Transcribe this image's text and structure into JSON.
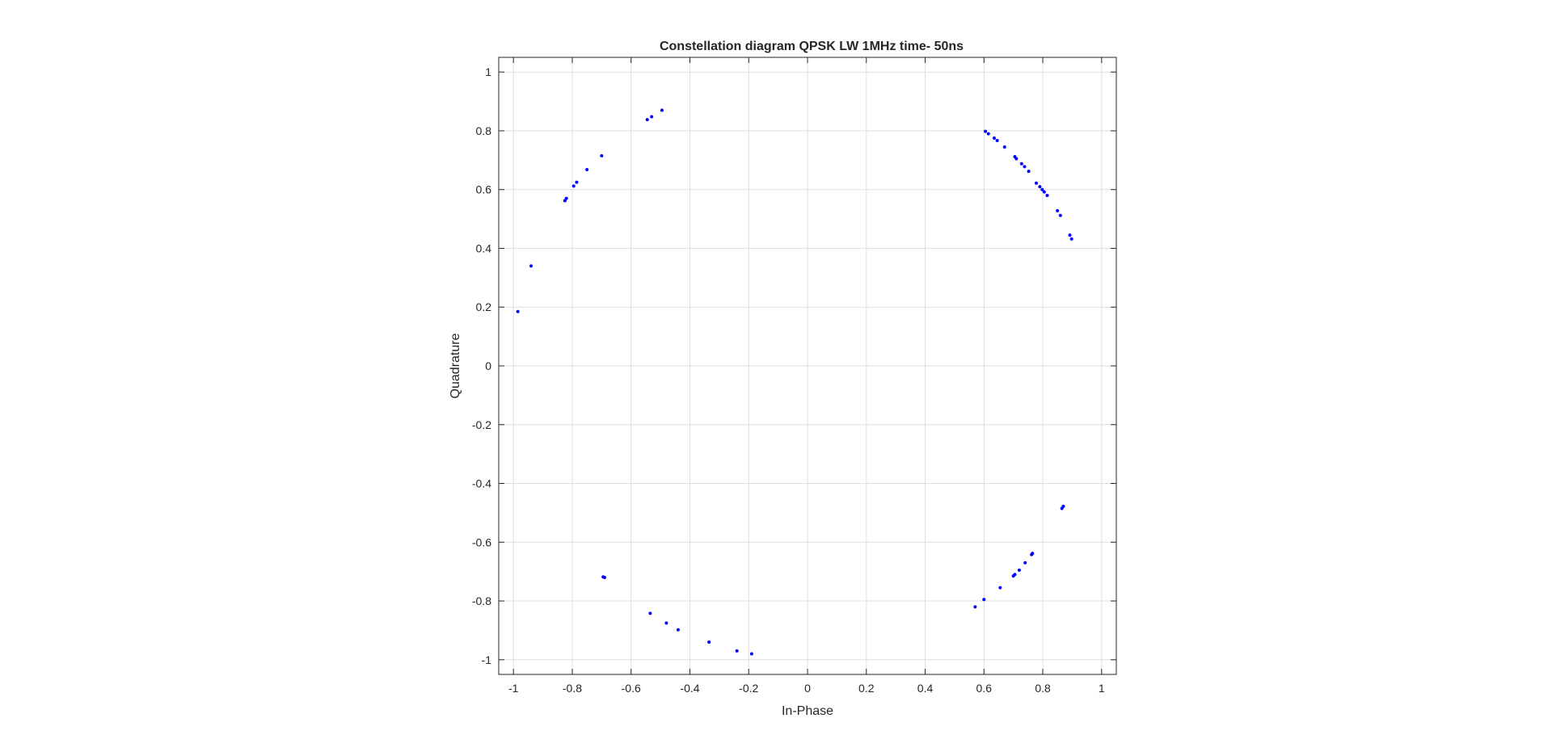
{
  "chart_data": {
    "type": "scatter",
    "title": "Constellation diagram QPSK LW 1MHz time- 50ns",
    "xlabel": "In-Phase",
    "ylabel": "Quadrature",
    "xlim": [
      -1.05,
      1.05
    ],
    "ylim": [
      -1.05,
      1.05
    ],
    "xticks": [
      -1,
      -0.8,
      -0.6,
      -0.4,
      -0.2,
      0,
      0.2,
      0.4,
      0.6,
      0.8,
      1
    ],
    "yticks": [
      -1,
      -0.8,
      -0.6,
      -0.4,
      -0.2,
      0,
      0.2,
      0.4,
      0.6,
      0.8,
      1
    ],
    "xtick_labels": [
      "-1",
      "-0.8",
      "-0.6",
      "-0.4",
      "-0.2",
      "0",
      "0.2",
      "0.4",
      "0.6",
      "0.8",
      "1"
    ],
    "ytick_labels": [
      "-1",
      "-0.8",
      "-0.6",
      "-0.4",
      "-0.2",
      "0",
      "0.2",
      "0.4",
      "0.6",
      "0.8",
      "1"
    ],
    "grid": true,
    "marker_color": "#0000ff",
    "points": [
      [
        -0.985,
        0.185
      ],
      [
        -0.94,
        0.34
      ],
      [
        -0.825,
        0.562
      ],
      [
        -0.82,
        0.57
      ],
      [
        -0.795,
        0.612
      ],
      [
        -0.785,
        0.625
      ],
      [
        -0.75,
        0.668
      ],
      [
        -0.7,
        0.715
      ],
      [
        -0.545,
        0.838
      ],
      [
        -0.53,
        0.848
      ],
      [
        -0.495,
        0.87
      ],
      [
        0.605,
        0.798
      ],
      [
        0.615,
        0.79
      ],
      [
        0.635,
        0.775
      ],
      [
        0.645,
        0.767
      ],
      [
        0.67,
        0.745
      ],
      [
        0.705,
        0.712
      ],
      [
        0.71,
        0.705
      ],
      [
        0.728,
        0.688
      ],
      [
        0.738,
        0.678
      ],
      [
        0.752,
        0.662
      ],
      [
        0.778,
        0.622
      ],
      [
        0.79,
        0.61
      ],
      [
        0.798,
        0.6
      ],
      [
        0.805,
        0.592
      ],
      [
        0.815,
        0.58
      ],
      [
        0.85,
        0.528
      ],
      [
        0.86,
        0.512
      ],
      [
        0.892,
        0.445
      ],
      [
        0.898,
        0.432
      ],
      [
        0.865,
        -0.485
      ],
      [
        0.87,
        -0.478
      ],
      [
        0.765,
        -0.638
      ],
      [
        0.762,
        -0.642
      ],
      [
        0.74,
        -0.67
      ],
      [
        0.72,
        -0.695
      ],
      [
        0.705,
        -0.71
      ],
      [
        0.7,
        -0.715
      ],
      [
        0.655,
        -0.755
      ],
      [
        0.6,
        -0.795
      ],
      [
        0.57,
        -0.82
      ],
      [
        -0.69,
        -0.72
      ],
      [
        -0.695,
        -0.718
      ],
      [
        -0.535,
        -0.842
      ],
      [
        -0.48,
        -0.875
      ],
      [
        -0.44,
        -0.898
      ],
      [
        -0.335,
        -0.94
      ],
      [
        -0.24,
        -0.97
      ],
      [
        -0.19,
        -0.98
      ]
    ]
  }
}
